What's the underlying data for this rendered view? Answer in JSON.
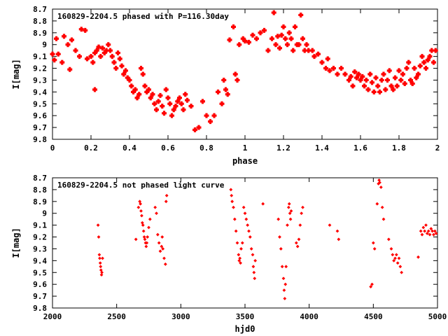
{
  "chart_data": [
    {
      "type": "scatter",
      "title": "160829-2204.5 phased with P=116.30day",
      "xlabel": "phase",
      "ylabel": "I[mag]",
      "xlim": [
        0,
        2
      ],
      "ylim": [
        8.7,
        9.8
      ],
      "y_inverted": true,
      "marker_color": "#ff0000",
      "marker": "filled-cross",
      "xticks": [
        "0",
        "0.2",
        "0.4",
        "0.6",
        "0.8",
        "1",
        "1.2",
        "1.4",
        "1.6",
        "1.8",
        "2"
      ],
      "yticks": [
        "8.7",
        "8.8",
        "8.9",
        "9",
        "9.1",
        "9.2",
        "9.3",
        "9.4",
        "9.5",
        "9.6",
        "9.7",
        "9.8"
      ],
      "points": [
        [
          0.0,
          9.08
        ],
        [
          0.01,
          9.13
        ],
        [
          0.02,
          8.95
        ],
        [
          0.03,
          9.08
        ],
        [
          0.05,
          9.15
        ],
        [
          0.06,
          8.93
        ],
        [
          0.08,
          9.0
        ],
        [
          0.09,
          9.21
        ],
        [
          0.1,
          8.96
        ],
        [
          0.12,
          9.05
        ],
        [
          0.14,
          9.1
        ],
        [
          0.15,
          8.87
        ],
        [
          0.17,
          8.88
        ],
        [
          0.18,
          9.12
        ],
        [
          0.2,
          9.1
        ],
        [
          0.21,
          9.15
        ],
        [
          0.22,
          9.07
        ],
        [
          0.22,
          9.38
        ],
        [
          0.23,
          9.05
        ],
        [
          0.24,
          9.02
        ],
        [
          0.25,
          9.1
        ],
        [
          0.26,
          9.03
        ],
        [
          0.27,
          9.07
        ],
        [
          0.28,
          9.05
        ],
        [
          0.29,
          9.0
        ],
        [
          0.3,
          9.05
        ],
        [
          0.31,
          9.1
        ],
        [
          0.32,
          9.15
        ],
        [
          0.33,
          9.2
        ],
        [
          0.34,
          9.07
        ],
        [
          0.35,
          9.12
        ],
        [
          0.36,
          9.18
        ],
        [
          0.37,
          9.25
        ],
        [
          0.38,
          9.22
        ],
        [
          0.39,
          9.28
        ],
        [
          0.4,
          9.3
        ],
        [
          0.41,
          9.35
        ],
        [
          0.42,
          9.4
        ],
        [
          0.43,
          9.38
        ],
        [
          0.44,
          9.45
        ],
        [
          0.45,
          9.42
        ],
        [
          0.46,
          9.2
        ],
        [
          0.47,
          9.25
        ],
        [
          0.48,
          9.35
        ],
        [
          0.49,
          9.4
        ],
        [
          0.5,
          9.38
        ],
        [
          0.51,
          9.45
        ],
        [
          0.52,
          9.42
        ],
        [
          0.53,
          9.5
        ],
        [
          0.54,
          9.55
        ],
        [
          0.55,
          9.48
        ],
        [
          0.56,
          9.43
        ],
        [
          0.57,
          9.52
        ],
        [
          0.58,
          9.58
        ],
        [
          0.59,
          9.38
        ],
        [
          0.6,
          9.45
        ],
        [
          0.61,
          9.5
        ],
        [
          0.62,
          9.6
        ],
        [
          0.63,
          9.55
        ],
        [
          0.64,
          9.52
        ],
        [
          0.65,
          9.48
        ],
        [
          0.66,
          9.45
        ],
        [
          0.67,
          9.5
        ],
        [
          0.68,
          9.55
        ],
        [
          0.69,
          9.42
        ],
        [
          0.7,
          9.47
        ],
        [
          0.72,
          9.52
        ],
        [
          0.74,
          9.72
        ],
        [
          0.76,
          9.7
        ],
        [
          0.78,
          9.48
        ],
        [
          0.8,
          9.6
        ],
        [
          0.82,
          9.65
        ],
        [
          0.84,
          9.6
        ],
        [
          0.86,
          9.4
        ],
        [
          0.88,
          9.5
        ],
        [
          0.89,
          9.3
        ],
        [
          0.9,
          9.38
        ],
        [
          0.91,
          9.42
        ],
        [
          0.92,
          8.96
        ],
        [
          0.94,
          8.85
        ],
        [
          0.95,
          9.25
        ],
        [
          0.96,
          9.3
        ],
        [
          0.97,
          9.0
        ],
        [
          0.99,
          8.95
        ],
        [
          1.0,
          8.97
        ],
        [
          1.02,
          8.98
        ],
        [
          1.04,
          8.92
        ],
        [
          1.06,
          8.95
        ],
        [
          1.08,
          8.9
        ],
        [
          1.1,
          8.88
        ],
        [
          1.12,
          9.05
        ],
        [
          1.14,
          8.95
        ],
        [
          1.15,
          8.73
        ],
        [
          1.16,
          9.0
        ],
        [
          1.17,
          8.93
        ],
        [
          1.18,
          9.03
        ],
        [
          1.19,
          8.92
        ],
        [
          1.2,
          8.85
        ],
        [
          1.21,
          8.95
        ],
        [
          1.22,
          9.0
        ],
        [
          1.23,
          8.9
        ],
        [
          1.24,
          8.95
        ],
        [
          1.25,
          9.05
        ],
        [
          1.26,
          8.85
        ],
        [
          1.27,
          9.0
        ],
        [
          1.28,
          9.0
        ],
        [
          1.29,
          8.75
        ],
        [
          1.3,
          8.95
        ],
        [
          1.31,
          9.05
        ],
        [
          1.32,
          9.0
        ],
        [
          1.33,
          9.05
        ],
        [
          1.35,
          9.05
        ],
        [
          1.36,
          9.1
        ],
        [
          1.38,
          9.08
        ],
        [
          1.4,
          9.15
        ],
        [
          1.42,
          9.2
        ],
        [
          1.43,
          9.12
        ],
        [
          1.44,
          9.22
        ],
        [
          1.46,
          9.2
        ],
        [
          1.48,
          9.25
        ],
        [
          1.5,
          9.2
        ],
        [
          1.52,
          9.25
        ],
        [
          1.54,
          9.3
        ],
        [
          1.55,
          9.27
        ],
        [
          1.56,
          9.35
        ],
        [
          1.57,
          9.23
        ],
        [
          1.58,
          9.28
        ],
        [
          1.59,
          9.25
        ],
        [
          1.6,
          9.3
        ],
        [
          1.61,
          9.27
        ],
        [
          1.62,
          9.35
        ],
        [
          1.63,
          9.3
        ],
        [
          1.64,
          9.38
        ],
        [
          1.65,
          9.25
        ],
        [
          1.66,
          9.32
        ],
        [
          1.67,
          9.4
        ],
        [
          1.68,
          9.28
        ],
        [
          1.69,
          9.35
        ],
        [
          1.7,
          9.4
        ],
        [
          1.71,
          9.3
        ],
        [
          1.72,
          9.25
        ],
        [
          1.73,
          9.38
        ],
        [
          1.74,
          9.3
        ],
        [
          1.75,
          9.22
        ],
        [
          1.76,
          9.35
        ],
        [
          1.77,
          9.38
        ],
        [
          1.78,
          9.28
        ],
        [
          1.79,
          9.35
        ],
        [
          1.8,
          9.22
        ],
        [
          1.81,
          9.3
        ],
        [
          1.82,
          9.25
        ],
        [
          1.83,
          9.33
        ],
        [
          1.84,
          9.2
        ],
        [
          1.85,
          9.15
        ],
        [
          1.86,
          9.3
        ],
        [
          1.87,
          9.33
        ],
        [
          1.88,
          9.2
        ],
        [
          1.89,
          9.28
        ],
        [
          1.9,
          9.25
        ],
        [
          1.91,
          9.18
        ],
        [
          1.92,
          9.1
        ],
        [
          1.93,
          9.15
        ],
        [
          1.94,
          9.2
        ],
        [
          1.95,
          9.13
        ],
        [
          1.96,
          9.1
        ],
        [
          1.97,
          9.05
        ],
        [
          1.98,
          9.15
        ],
        [
          1.99,
          9.05
        ]
      ]
    },
    {
      "type": "scatter",
      "title": "160829-2204.5 not phased light curve",
      "xlabel": "hjd0",
      "ylabel": "I[mag]",
      "xlim": [
        2000,
        5000
      ],
      "ylim": [
        8.7,
        9.8
      ],
      "y_inverted": true,
      "marker_color": "#ff0000",
      "marker": "small-diamond",
      "xticks": [
        "2000",
        "2500",
        "3000",
        "3500",
        "4000",
        "4500",
        "5000"
      ],
      "yticks": [
        "8.7",
        "8.8",
        "8.9",
        "9",
        "9.1",
        "9.2",
        "9.3",
        "9.4",
        "9.5",
        "9.6",
        "9.7",
        "9.8"
      ],
      "points": [
        [
          2355,
          9.1
        ],
        [
          2360,
          9.2
        ],
        [
          2365,
          9.35
        ],
        [
          2368,
          9.38
        ],
        [
          2372,
          9.42
        ],
        [
          2375,
          9.45
        ],
        [
          2378,
          9.48
        ],
        [
          2382,
          9.52
        ],
        [
          2385,
          9.5
        ],
        [
          2390,
          9.38
        ],
        [
          2650,
          9.22
        ],
        [
          2670,
          8.95
        ],
        [
          2680,
          8.9
        ],
        [
          2685,
          8.92
        ],
        [
          2690,
          8.98
        ],
        [
          2695,
          9.02
        ],
        [
          2700,
          9.08
        ],
        [
          2705,
          9.1
        ],
        [
          2710,
          9.15
        ],
        [
          2715,
          9.2
        ],
        [
          2720,
          9.22
        ],
        [
          2725,
          9.25
        ],
        [
          2730,
          9.28
        ],
        [
          2735,
          9.25
        ],
        [
          2740,
          9.2
        ],
        [
          2750,
          9.12
        ],
        [
          2760,
          9.05
        ],
        [
          2800,
          8.95
        ],
        [
          2810,
          9.0
        ],
        [
          2820,
          9.18
        ],
        [
          2830,
          9.25
        ],
        [
          2840,
          9.32
        ],
        [
          2850,
          9.28
        ],
        [
          2855,
          9.2
        ],
        [
          2860,
          9.3
        ],
        [
          2870,
          9.38
        ],
        [
          2880,
          9.43
        ],
        [
          2885,
          8.9
        ],
        [
          2890,
          8.85
        ],
        [
          3390,
          8.8
        ],
        [
          3395,
          8.85
        ],
        [
          3400,
          8.9
        ],
        [
          3410,
          8.95
        ],
        [
          3420,
          9.05
        ],
        [
          3430,
          9.15
        ],
        [
          3440,
          9.25
        ],
        [
          3450,
          9.35
        ],
        [
          3455,
          9.4
        ],
        [
          3460,
          9.38
        ],
        [
          3465,
          9.42
        ],
        [
          3470,
          9.3
        ],
        [
          3480,
          9.25
        ],
        [
          3490,
          8.95
        ],
        [
          3500,
          9.0
        ],
        [
          3510,
          9.05
        ],
        [
          3520,
          9.1
        ],
        [
          3530,
          9.15
        ],
        [
          3540,
          9.2
        ],
        [
          3550,
          9.3
        ],
        [
          3560,
          9.35
        ],
        [
          3565,
          9.45
        ],
        [
          3570,
          9.5
        ],
        [
          3575,
          9.55
        ],
        [
          3580,
          9.4
        ],
        [
          3640,
          8.92
        ],
        [
          3760,
          9.05
        ],
        [
          3770,
          9.2
        ],
        [
          3780,
          9.3
        ],
        [
          3790,
          9.45
        ],
        [
          3800,
          9.55
        ],
        [
          3805,
          9.65
        ],
        [
          3810,
          9.72
        ],
        [
          3815,
          9.6
        ],
        [
          3820,
          9.45
        ],
        [
          3830,
          9.1
        ],
        [
          3840,
          8.95
        ],
        [
          3845,
          8.92
        ],
        [
          3850,
          9.0
        ],
        [
          3855,
          9.05
        ],
        [
          3860,
          8.98
        ],
        [
          3900,
          9.25
        ],
        [
          3910,
          9.28
        ],
        [
          3920,
          9.22
        ],
        [
          3930,
          9.1
        ],
        [
          3940,
          9.0
        ],
        [
          3950,
          8.95
        ],
        [
          4160,
          9.1
        ],
        [
          4220,
          9.15
        ],
        [
          4230,
          9.22
        ],
        [
          4480,
          9.62
        ],
        [
          4490,
          9.6
        ],
        [
          4500,
          9.25
        ],
        [
          4510,
          9.3
        ],
        [
          4530,
          8.92
        ],
        [
          4540,
          8.75
        ],
        [
          4545,
          8.72
        ],
        [
          4550,
          8.74
        ],
        [
          4560,
          8.78
        ],
        [
          4570,
          8.95
        ],
        [
          4580,
          9.05
        ],
        [
          4620,
          9.22
        ],
        [
          4640,
          9.3
        ],
        [
          4650,
          9.35
        ],
        [
          4660,
          9.4
        ],
        [
          4670,
          9.38
        ],
        [
          4680,
          9.35
        ],
        [
          4690,
          9.42
        ],
        [
          4700,
          9.38
        ],
        [
          4710,
          9.45
        ],
        [
          4720,
          9.5
        ],
        [
          4850,
          9.37
        ],
        [
          4870,
          9.15
        ],
        [
          4880,
          9.18
        ],
        [
          4890,
          9.12
        ],
        [
          4900,
          9.15
        ],
        [
          4910,
          9.1
        ],
        [
          4920,
          9.17
        ],
        [
          4930,
          9.15
        ],
        [
          4940,
          9.18
        ],
        [
          4950,
          9.13
        ],
        [
          4960,
          9.15
        ],
        [
          4970,
          9.18
        ],
        [
          4980,
          9.15
        ],
        [
          4990,
          9.17
        ]
      ]
    }
  ]
}
